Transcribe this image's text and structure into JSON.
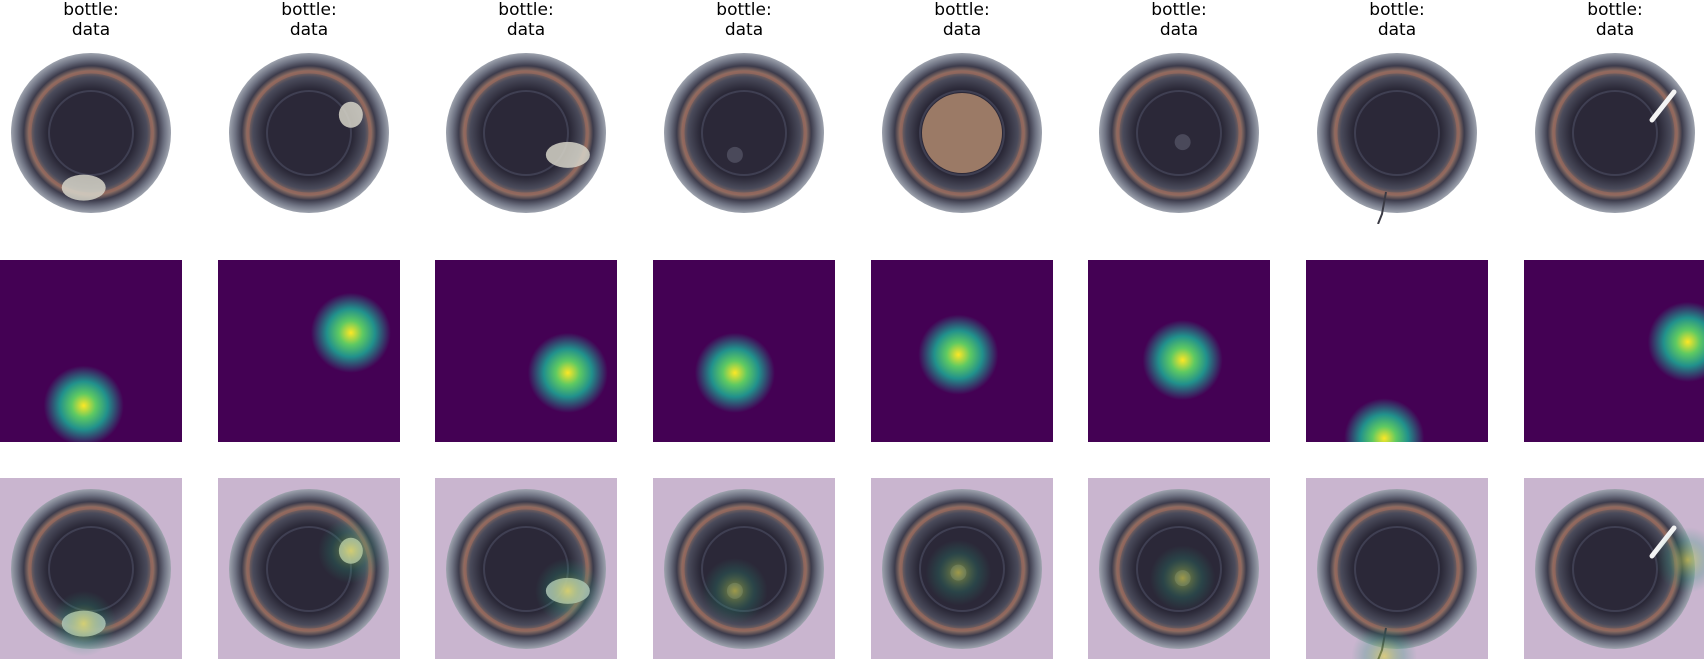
{
  "panels": [
    {
      "title_line1": "bottle:",
      "title_line2": "data",
      "defect": "broken_large",
      "blob": [
        0.46,
        0.8
      ]
    },
    {
      "title_line1": "bottle:",
      "title_line2": "data",
      "defect": "broken_small",
      "blob": [
        0.73,
        0.4
      ]
    },
    {
      "title_line1": "bottle:",
      "title_line2": "data",
      "defect": "broken_large",
      "blob": [
        0.73,
        0.62
      ]
    },
    {
      "title_line1": "bottle:",
      "title_line2": "data",
      "defect": "contamination",
      "blob": [
        0.45,
        0.62
      ]
    },
    {
      "title_line1": "bottle:",
      "title_line2": "data",
      "defect": "contamination",
      "blob": [
        0.48,
        0.52
      ]
    },
    {
      "title_line1": "bottle:",
      "title_line2": "data",
      "defect": "contamination",
      "blob": [
        0.52,
        0.55
      ]
    },
    {
      "title_line1": "bottle:",
      "title_line2": "data",
      "defect": "crack",
      "blob": [
        0.43,
        0.98
      ]
    },
    {
      "title_line1": "bottle:",
      "title_line2": "data",
      "defect": "scratch",
      "blob": [
        0.9,
        0.45
      ]
    }
  ],
  "colors": {
    "viridis_low": "#440154",
    "viridis_mid": "#21918c",
    "viridis_high": "#fde725",
    "bottle_dark": "#2b2838",
    "bottle_rim": "#5c5f6e",
    "overlay_tint": "#c9b5cf"
  }
}
